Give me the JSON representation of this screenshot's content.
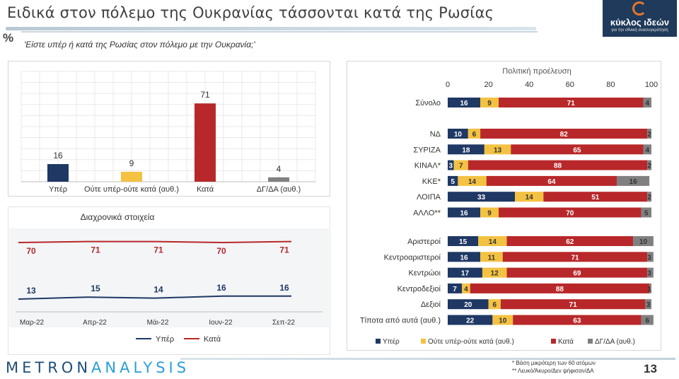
{
  "header": {
    "title": "Ειδικά στον πόλεμο της Ουκρανίας τάσσονται κατά της Ρωσίας",
    "percent_symbol": "%",
    "question": "'Είστε υπέρ ή κατά της Ρωσίας στον πόλεμο με την Ουκρανία;'",
    "logo_name": "κύκλος ιδεών",
    "logo_tagline": "για την εθνική ανασυγκρότηση"
  },
  "footer": {
    "brand_left": "METRON",
    "brand_right": "ANALYSIS",
    "note1": "* Βάση μικρότερη των 60 ατόμων",
    "note2": "** Λευκό/Άκυρο/Δεν ψήφισαν/ΔΑ",
    "page_number": "13"
  },
  "colors": {
    "yper": "#1f3864",
    "neutral": "#f4c242",
    "kata": "#b8282a",
    "dgda": "#808080"
  },
  "chart_data": [
    {
      "type": "bar",
      "categories": [
        "Υπέρ",
        "Ούτε υπέρ-ούτε κατά (αυθ.)",
        "Κατά",
        "ΔΓ/ΔΑ (αυθ.)"
      ],
      "values": [
        16,
        9,
        71,
        4
      ],
      "ylim": [
        0,
        100
      ]
    },
    {
      "type": "line",
      "title": "Διαχρονικά στοιχεία",
      "categories": [
        "Μαρ-22",
        "Απρ-22",
        "Μάι-22",
        "Ιουν-22",
        "Σεπ-22"
      ],
      "series": [
        {
          "name": "Υπέρ",
          "values": [
            13,
            15,
            14,
            16,
            16
          ]
        },
        {
          "name": "Κατά",
          "values": [
            70,
            71,
            71,
            70,
            71
          ]
        }
      ]
    },
    {
      "type": "bar",
      "orientation": "horizontal-stacked",
      "title": "Πολιτική προέλευση",
      "xlim": [
        0,
        100
      ],
      "ticks": [
        "0",
        "20",
        "40",
        "60",
        "80",
        "100"
      ],
      "legend_position": "bottom",
      "series_names": [
        "Υπέρ",
        "Ούτε υπέρ-ούτε κατά (αυθ.)",
        "Κατά",
        "ΔΓ/ΔΑ (αυθ.)"
      ],
      "groups": [
        [
          {
            "label": "Σύνολο",
            "values": [
              16,
              9,
              71,
              4
            ]
          }
        ],
        [
          {
            "label": "ΝΔ",
            "values": [
              10,
              6,
              82,
              2
            ]
          },
          {
            "label": "ΣΥΡΙΖΑ",
            "values": [
              18,
              13,
              65,
              4
            ]
          },
          {
            "label": "ΚΙΝΑΛ*",
            "values": [
              3,
              7,
              88,
              2
            ]
          },
          {
            "label": "ΚΚΕ*",
            "values": [
              5,
              14,
              64,
              16
            ]
          },
          {
            "label": "ΛΟΙΠΑ",
            "values": [
              33,
              14,
              51,
              2
            ]
          },
          {
            "label": "ΑΛΛΟ**",
            "values": [
              16,
              9,
              70,
              5
            ]
          }
        ],
        [
          {
            "label": "Αριστεροί",
            "values": [
              15,
              14,
              62,
              10
            ]
          },
          {
            "label": "Κεντροαριστεροί",
            "values": [
              16,
              11,
              71,
              3
            ]
          },
          {
            "label": "Κεντρώοι",
            "values": [
              17,
              12,
              69,
              3
            ]
          },
          {
            "label": "Κεντροδεξιοί",
            "values": [
              7,
              4,
              88,
              1
            ]
          },
          {
            "label": "Δεξιοί",
            "values": [
              20,
              6,
              71,
              3
            ]
          },
          {
            "label": "Τίποτα από αυτά (αυθ.)",
            "values": [
              22,
              10,
              63,
              6
            ]
          }
        ]
      ]
    }
  ]
}
